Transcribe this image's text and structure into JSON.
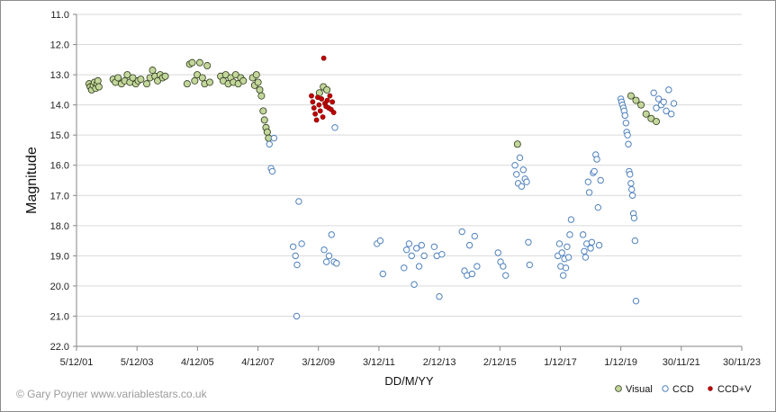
{
  "chart_data": {
    "type": "scatter",
    "xlabel": "DD/M/YY",
    "ylabel": "Magnitude",
    "y_inverted": true,
    "ylim": [
      11.0,
      22.0
    ],
    "yticks": [
      "11.0",
      "12.0",
      "13.0",
      "14.0",
      "15.0",
      "16.0",
      "17.0",
      "18.0",
      "19.0",
      "20.0",
      "21.0",
      "22.0"
    ],
    "xlim": [
      "2001-12-05",
      "2023-11-30"
    ],
    "xticks": [
      "5/12/01",
      "5/12/03",
      "4/12/05",
      "4/12/07",
      "3/12/09",
      "3/12/11",
      "2/12/13",
      "2/12/15",
      "1/12/17",
      "1/12/19",
      "30/11/21",
      "30/11/23"
    ],
    "grid": {
      "horizontal": true,
      "vertical": false
    },
    "legend_position": "bottom-right",
    "series": [
      {
        "name": "Visual",
        "color": "#c3d69b",
        "points": [
          [
            "2002-05-05",
            13.3
          ],
          [
            "2002-05-20",
            13.4
          ],
          [
            "2002-06-05",
            13.5
          ],
          [
            "2002-06-25",
            13.35
          ],
          [
            "2002-07-10",
            13.25
          ],
          [
            "2002-07-25",
            13.45
          ],
          [
            "2002-08-10",
            13.3
          ],
          [
            "2002-08-20",
            13.2
          ],
          [
            "2002-09-01",
            13.4
          ],
          [
            "2003-02-20",
            13.15
          ],
          [
            "2003-03-20",
            13.25
          ],
          [
            "2003-04-20",
            13.1
          ],
          [
            "2003-06-01",
            13.3
          ],
          [
            "2003-07-10",
            13.2
          ],
          [
            "2003-08-10",
            13.0
          ],
          [
            "2003-09-10",
            13.25
          ],
          [
            "2003-10-15",
            13.1
          ],
          [
            "2003-11-20",
            13.3
          ],
          [
            "2003-12-20",
            13.2
          ],
          [
            "2004-01-20",
            13.15
          ],
          [
            "2004-04-01",
            13.3
          ],
          [
            "2004-05-10",
            13.1
          ],
          [
            "2004-06-10",
            12.85
          ],
          [
            "2004-07-10",
            13.05
          ],
          [
            "2004-08-10",
            13.2
          ],
          [
            "2004-09-10",
            13.0
          ],
          [
            "2004-10-10",
            13.1
          ],
          [
            "2004-11-10",
            13.05
          ],
          [
            "2005-08-01",
            13.3
          ],
          [
            "2005-09-01",
            12.65
          ],
          [
            "2005-10-01",
            12.6
          ],
          [
            "2005-11-01",
            13.2
          ],
          [
            "2005-12-01",
            13.0
          ],
          [
            "2006-01-01",
            12.6
          ],
          [
            "2006-02-01",
            13.1
          ],
          [
            "2006-03-01",
            13.3
          ],
          [
            "2006-04-01",
            12.7
          ],
          [
            "2006-05-01",
            13.25
          ],
          [
            "2006-09-10",
            13.05
          ],
          [
            "2006-10-10",
            13.2
          ],
          [
            "2006-11-10",
            13.0
          ],
          [
            "2006-12-10",
            13.3
          ],
          [
            "2007-01-10",
            13.1
          ],
          [
            "2007-02-10",
            13.25
          ],
          [
            "2007-03-10",
            13.0
          ],
          [
            "2007-04-10",
            13.3
          ],
          [
            "2007-05-10",
            13.1
          ],
          [
            "2007-06-10",
            13.2
          ],
          [
            "2007-10-01",
            13.1
          ],
          [
            "2007-10-25",
            13.35
          ],
          [
            "2007-11-15",
            13.0
          ],
          [
            "2007-12-05",
            13.25
          ],
          [
            "2007-12-25",
            13.5
          ],
          [
            "2008-01-15",
            13.7
          ],
          [
            "2008-02-05",
            14.2
          ],
          [
            "2008-02-20",
            14.5
          ],
          [
            "2008-03-10",
            14.75
          ],
          [
            "2008-03-25",
            14.9
          ],
          [
            "2008-04-10",
            15.1
          ],
          [
            "2009-12-15",
            13.6
          ],
          [
            "2010-02-01",
            13.4
          ],
          [
            "2010-03-15",
            13.5
          ],
          [
            "2016-07-01",
            15.3
          ],
          [
            "2020-04-01",
            13.7
          ],
          [
            "2020-06-01",
            13.85
          ],
          [
            "2020-08-01",
            14.0
          ],
          [
            "2020-10-01",
            14.3
          ],
          [
            "2020-12-01",
            14.45
          ],
          [
            "2021-02-01",
            14.55
          ]
        ]
      },
      {
        "name": "CCD",
        "color": "#4f81bd",
        "points": [
          [
            "2008-04-20",
            15.3
          ],
          [
            "2008-05-10",
            16.1
          ],
          [
            "2008-05-25",
            16.2
          ],
          [
            "2008-06-15",
            15.1
          ],
          [
            "2009-02-01",
            18.7
          ],
          [
            "2009-03-01",
            19.0
          ],
          [
            "2009-03-20",
            19.3
          ],
          [
            "2009-04-10",
            17.2
          ],
          [
            "2009-05-15",
            18.6
          ],
          [
            "2009-03-15",
            21.0
          ],
          [
            "2010-02-10",
            18.8
          ],
          [
            "2010-03-10",
            19.2
          ],
          [
            "2010-04-10",
            19.0
          ],
          [
            "2010-05-10",
            18.3
          ],
          [
            "2010-06-10",
            19.2
          ],
          [
            "2010-07-10",
            19.25
          ],
          [
            "2010-06-20",
            14.75
          ],
          [
            "2011-11-10",
            18.6
          ],
          [
            "2011-12-20",
            18.5
          ],
          [
            "2012-01-20",
            19.6
          ],
          [
            "2012-10-01",
            19.4
          ],
          [
            "2012-11-01",
            18.8
          ],
          [
            "2012-12-01",
            18.6
          ],
          [
            "2013-01-01",
            19.0
          ],
          [
            "2013-02-01",
            19.95
          ],
          [
            "2013-03-01",
            18.75
          ],
          [
            "2013-04-01",
            19.35
          ],
          [
            "2013-05-01",
            18.65
          ],
          [
            "2013-06-01",
            19.0
          ],
          [
            "2013-10-01",
            18.7
          ],
          [
            "2013-11-01",
            19.0
          ],
          [
            "2013-12-01",
            20.35
          ],
          [
            "2014-01-01",
            18.95
          ],
          [
            "2014-09-01",
            18.2
          ],
          [
            "2014-10-01",
            19.5
          ],
          [
            "2014-11-01",
            19.65
          ],
          [
            "2014-12-01",
            18.65
          ],
          [
            "2015-01-01",
            19.6
          ],
          [
            "2015-02-01",
            18.35
          ],
          [
            "2015-03-01",
            19.35
          ],
          [
            "2015-11-10",
            18.9
          ],
          [
            "2015-12-10",
            19.2
          ],
          [
            "2016-01-10",
            19.35
          ],
          [
            "2016-02-10",
            19.65
          ],
          [
            "2016-06-01",
            16.0
          ],
          [
            "2016-06-20",
            16.3
          ],
          [
            "2016-07-10",
            16.6
          ],
          [
            "2016-07-30",
            15.75
          ],
          [
            "2016-08-20",
            16.7
          ],
          [
            "2016-09-10",
            16.15
          ],
          [
            "2016-10-01",
            16.45
          ],
          [
            "2016-10-20",
            16.55
          ],
          [
            "2016-11-10",
            18.55
          ],
          [
            "2016-11-25",
            19.3
          ],
          [
            "2017-11-01",
            19.0
          ],
          [
            "2017-11-20",
            18.6
          ],
          [
            "2017-12-05",
            19.35
          ],
          [
            "2017-12-20",
            18.9
          ],
          [
            "2018-01-05",
            19.65
          ],
          [
            "2018-01-20",
            19.1
          ],
          [
            "2018-02-05",
            19.4
          ],
          [
            "2018-02-20",
            18.7
          ],
          [
            "2018-03-10",
            19.05
          ],
          [
            "2018-03-25",
            18.3
          ],
          [
            "2018-04-10",
            17.8
          ],
          [
            "2018-09-01",
            18.3
          ],
          [
            "2018-09-15",
            18.85
          ],
          [
            "2018-10-01",
            19.05
          ],
          [
            "2018-10-15",
            18.6
          ],
          [
            "2018-11-01",
            16.55
          ],
          [
            "2018-11-15",
            16.9
          ],
          [
            "2018-12-01",
            18.75
          ],
          [
            "2018-12-15",
            18.55
          ],
          [
            "2019-01-01",
            16.25
          ],
          [
            "2019-01-15",
            16.2
          ],
          [
            "2019-02-01",
            15.65
          ],
          [
            "2019-02-15",
            15.8
          ],
          [
            "2019-03-01",
            17.4
          ],
          [
            "2019-03-15",
            18.65
          ],
          [
            "2019-04-01",
            16.5
          ],
          [
            "2019-12-01",
            13.8
          ],
          [
            "2019-12-10",
            13.9
          ],
          [
            "2019-12-20",
            14.0
          ],
          [
            "2020-01-01",
            14.1
          ],
          [
            "2020-01-10",
            14.2
          ],
          [
            "2020-01-20",
            14.35
          ],
          [
            "2020-02-01",
            14.6
          ],
          [
            "2020-02-10",
            14.9
          ],
          [
            "2020-02-20",
            15.0
          ],
          [
            "2020-03-01",
            15.3
          ],
          [
            "2020-03-10",
            16.2
          ],
          [
            "2020-03-20",
            16.3
          ],
          [
            "2020-04-01",
            16.6
          ],
          [
            "2020-04-10",
            16.8
          ],
          [
            "2020-04-20",
            17.0
          ],
          [
            "2020-05-01",
            17.6
          ],
          [
            "2020-05-10",
            17.75
          ],
          [
            "2020-05-20",
            18.5
          ],
          [
            "2020-06-01",
            20.5
          ],
          [
            "2021-01-01",
            13.6
          ],
          [
            "2021-02-01",
            14.1
          ],
          [
            "2021-03-01",
            13.8
          ],
          [
            "2021-04-01",
            14.0
          ],
          [
            "2021-05-01",
            13.9
          ],
          [
            "2021-06-01",
            14.2
          ],
          [
            "2021-07-01",
            13.5
          ],
          [
            "2021-08-01",
            14.3
          ],
          [
            "2021-09-01",
            13.95
          ]
        ]
      },
      {
        "name": "CCD+V",
        "color": "#c00000",
        "points": [
          [
            "2009-09-10",
            13.7
          ],
          [
            "2009-09-25",
            13.9
          ],
          [
            "2009-10-10",
            14.1
          ],
          [
            "2009-10-25",
            14.3
          ],
          [
            "2009-11-10",
            14.5
          ],
          [
            "2009-11-25",
            13.75
          ],
          [
            "2009-12-10",
            14.0
          ],
          [
            "2009-12-25",
            14.2
          ],
          [
            "2010-01-10",
            13.8
          ],
          [
            "2010-01-25",
            14.4
          ],
          [
            "2010-02-05",
            12.45
          ],
          [
            "2010-02-20",
            13.95
          ],
          [
            "2010-03-05",
            14.05
          ],
          [
            "2010-03-20",
            13.85
          ],
          [
            "2010-04-05",
            14.1
          ],
          [
            "2010-04-20",
            13.7
          ],
          [
            "2010-05-05",
            14.15
          ],
          [
            "2010-05-20",
            13.9
          ],
          [
            "2010-06-05",
            14.25
          ]
        ]
      }
    ]
  },
  "credit": "© Gary Poyner  www.variablestars.co.uk"
}
